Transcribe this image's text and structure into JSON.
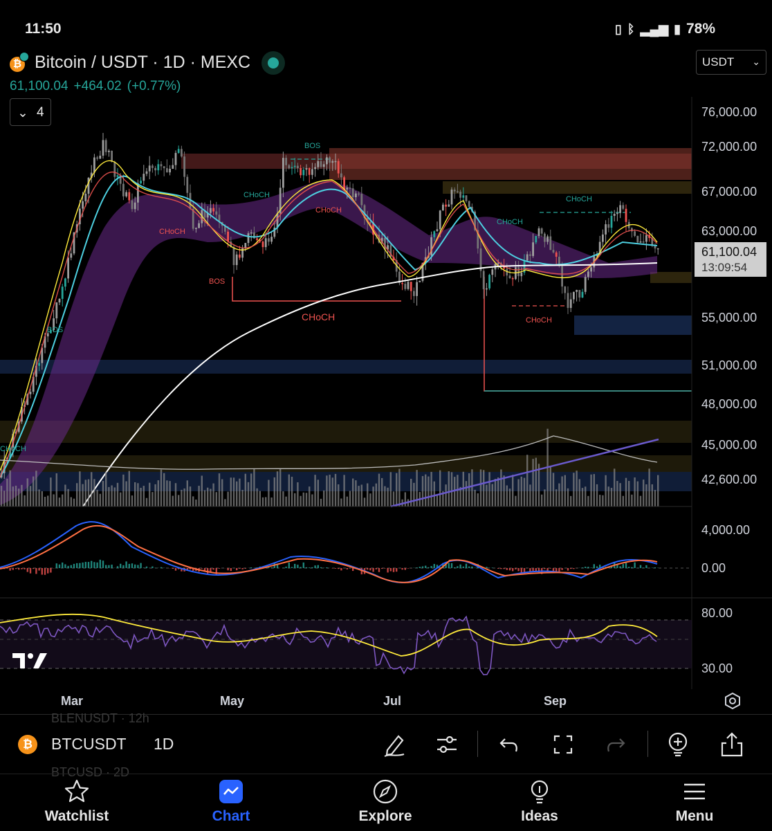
{
  "status_bar": {
    "time": "11:50",
    "battery": "78%"
  },
  "header": {
    "symbol_title": "Bitcoin / USDT · 1D · MEXC",
    "last_price": "61,100.04",
    "change": "+464.02",
    "change_pct": "(+0.77%)",
    "currency": "USDT",
    "indicator_count": "4",
    "colors": {
      "up": "#26a69a",
      "down": "#ef5350"
    }
  },
  "price_axis": {
    "ticks": [
      "76,000.00",
      "72,000.00",
      "67,000.00",
      "63,000.00",
      "55,000.00",
      "51,000.00",
      "48,000.00",
      "45,000.00",
      "42,600.00"
    ],
    "current_price_label": "61,100.04",
    "countdown": "13:09:54"
  },
  "macd_axis": {
    "ticks": [
      "4,000.00",
      "0.00"
    ]
  },
  "rsi_axis": {
    "ticks": [
      "80.00",
      "30.00"
    ]
  },
  "chart_labels": {
    "bos": [
      "BOS",
      "BOS",
      "BOS"
    ],
    "choch": [
      "CHoCH",
      "CHoCH",
      "CHoCH",
      "CHoCH",
      "CHoCH",
      "CHoCH",
      "CHoCH",
      "CHoCH"
    ]
  },
  "x_axis": {
    "ticks": [
      "Mar",
      "May",
      "Jul",
      "Sep"
    ]
  },
  "toolbar": {
    "ghost_top": "BLENUSDT · 12h",
    "symbol": "BTCUSDT",
    "interval": "1D",
    "ghost_bottom": "BTCUSD · 2D",
    "icons": [
      "draw-icon",
      "indicator-settings-icon",
      "undo-icon",
      "fullscreen-icon",
      "redo-icon",
      "add-alert-icon",
      "share-icon"
    ]
  },
  "nav": {
    "items": [
      {
        "label": "Watchlist",
        "icon": "star-icon"
      },
      {
        "label": "Chart",
        "icon": "chart-icon",
        "active": true
      },
      {
        "label": "Explore",
        "icon": "compass-icon"
      },
      {
        "label": "Ideas",
        "icon": "lightbulb-icon"
      },
      {
        "label": "Menu",
        "icon": "hamburger-icon"
      }
    ]
  }
}
